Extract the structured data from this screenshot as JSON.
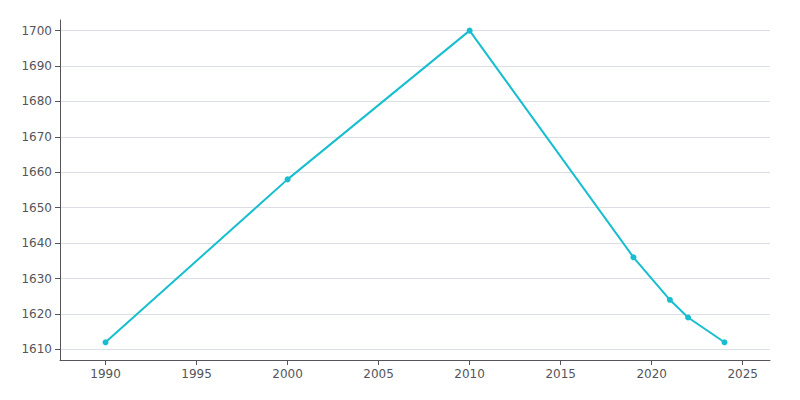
{
  "chart_data": {
    "type": "line",
    "x": [
      1990,
      2000,
      2010,
      2019,
      2021,
      2022,
      2024
    ],
    "values": [
      1612,
      1658,
      1700,
      1636,
      1624,
      1619,
      1612
    ],
    "color": "#17becf",
    "marker": "circle",
    "xlim": [
      1987.5,
      2026.5
    ],
    "xticks": [
      1990,
      1995,
      2000,
      2005,
      2010,
      2015,
      2020,
      2025
    ],
    "ylim": [
      1607,
      1703
    ],
    "yticks": [
      1610,
      1620,
      1630,
      1640,
      1650,
      1660,
      1670,
      1680,
      1690,
      1700
    ],
    "grid": true
  }
}
